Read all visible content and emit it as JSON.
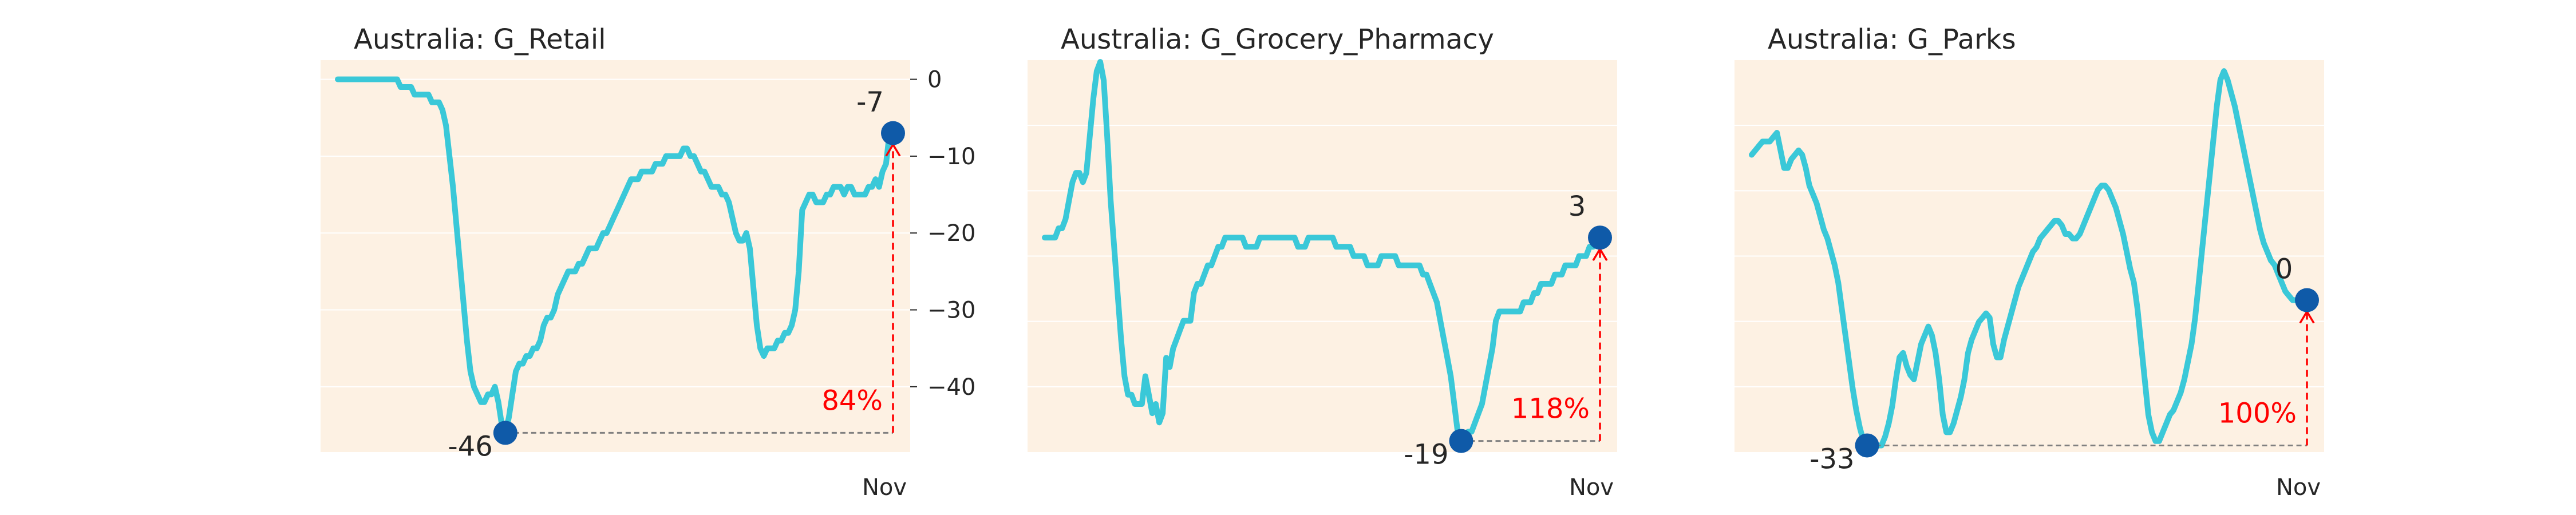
{
  "colors": {
    "background": "#fdf1e3",
    "line": "#3ac8d8",
    "marker": "#0f5aa8",
    "baseline": "#808080",
    "arrow": "#ff0000",
    "grid": "#ffffff"
  },
  "chart_data": [
    {
      "type": "line",
      "title": "Australia: G_Retail",
      "x_tick_label": "Nov",
      "ylim": [
        -48.5,
        2.5
      ],
      "y_ticks": [
        0,
        -10,
        -20,
        -30,
        -40
      ],
      "y_tick_labels": [
        "0",
        "−10",
        "−20",
        "−30",
        "−40"
      ],
      "grid": true,
      "values": [
        0,
        0,
        0,
        0,
        0,
        0,
        0,
        0,
        0,
        0,
        0,
        0,
        0,
        0,
        0,
        0,
        0,
        0,
        -1,
        -1,
        -1,
        -1,
        -2,
        -2,
        -2,
        -2,
        -2,
        -3,
        -3,
        -3,
        -4,
        -6,
        -10,
        -14,
        -19,
        -24,
        -29,
        -34,
        -38,
        -40,
        -41,
        -42,
        -42,
        -41,
        -41,
        -40,
        -42,
        -45,
        -46,
        -44,
        -41,
        -38,
        -37,
        -37,
        -36,
        -36,
        -35,
        -35,
        -34,
        -32,
        -31,
        -31,
        -30,
        -28,
        -27,
        -26,
        -25,
        -25,
        -25,
        -24,
        -24,
        -23,
        -22,
        -22,
        -22,
        -21,
        -20,
        -20,
        -19,
        -18,
        -17,
        -16,
        -15,
        -14,
        -13,
        -13,
        -13,
        -12,
        -12,
        -12,
        -12,
        -11,
        -11,
        -11,
        -10,
        -10,
        -10,
        -10,
        -10,
        -9,
        -9,
        -10,
        -10,
        -11,
        -12,
        -12,
        -13,
        -14,
        -14,
        -14,
        -15,
        -15,
        -16,
        -18,
        -20,
        -21,
        -21,
        -20,
        -22,
        -27,
        -32,
        -35,
        -36,
        -35,
        -35,
        -35,
        -34,
        -34,
        -33,
        -33,
        -32,
        -30,
        -25,
        -17,
        -16,
        -15,
        -15,
        -16,
        -16,
        -16,
        -15,
        -15,
        -14,
        -14,
        -14,
        -15,
        -14,
        -14,
        -15,
        -15,
        -15,
        -15,
        -14,
        -14,
        -13,
        -14,
        -12,
        -11,
        -7,
        -7
      ],
      "min_value": -46,
      "end_value": -7,
      "min_label": "-46",
      "end_label": "-7",
      "change_label": "84%"
    },
    {
      "type": "line",
      "title": "Australia: G_Grocery_Pharmacy",
      "x_tick_label": "Nov",
      "ylim": [
        -20.2,
        22.2
      ],
      "values": [
        3,
        3,
        3,
        3,
        4,
        4,
        5,
        7,
        9,
        10,
        10,
        9,
        10,
        14,
        18,
        21,
        22,
        20,
        14,
        7,
        2,
        -3,
        -8,
        -12,
        -14,
        -14,
        -15,
        -15,
        -15,
        -12,
        -14,
        -16,
        -15,
        -17,
        -16,
        -10,
        -11,
        -9,
        -8,
        -7,
        -6,
        -6,
        -6,
        -3,
        -2,
        -2,
        -1,
        0,
        0,
        1,
        2,
        2,
        3,
        3,
        3,
        3,
        3,
        3,
        2,
        2,
        2,
        2,
        3,
        3,
        3,
        3,
        3,
        3,
        3,
        3,
        3,
        3,
        3,
        2,
        2,
        2,
        3,
        3,
        3,
        3,
        3,
        3,
        3,
        3,
        2,
        2,
        2,
        2,
        2,
        1,
        1,
        1,
        1,
        0,
        0,
        0,
        0,
        1,
        1,
        1,
        1,
        1,
        0,
        0,
        0,
        0,
        0,
        0,
        0,
        -1,
        -1,
        -2,
        -3,
        -4,
        -6,
        -8,
        -10,
        -12,
        -15,
        -18,
        -19,
        -19,
        -18,
        -18,
        -17,
        -16,
        -15,
        -13,
        -11,
        -9,
        -6,
        -5,
        -5,
        -5,
        -5,
        -5,
        -5,
        -5,
        -4,
        -4,
        -4,
        -3,
        -3,
        -2,
        -2,
        -2,
        -2,
        -1,
        -1,
        -1,
        0,
        0,
        0,
        0,
        1,
        1,
        1,
        2,
        2,
        3,
        3
      ],
      "min_value": -19,
      "end_value": 3,
      "min_label": "-19",
      "end_label": "3",
      "change_label": "118%"
    },
    {
      "type": "line",
      "title": "Australia: G_Parks",
      "x_tick_label": "Nov",
      "ylim": [
        -34.5,
        54.5
      ],
      "values": [
        33,
        34,
        35,
        36,
        36,
        36,
        37,
        38,
        34,
        30,
        30,
        32,
        33,
        34,
        33,
        30,
        26,
        24,
        22,
        19,
        16,
        14,
        11,
        8,
        4,
        -2,
        -8,
        -14,
        -20,
        -25,
        -29,
        -32,
        -33,
        -33,
        -33,
        -33,
        -33,
        -31,
        -28,
        -24,
        -18,
        -13,
        -12,
        -15,
        -17,
        -18,
        -14,
        -10,
        -8,
        -6,
        -8,
        -12,
        -18,
        -26,
        -30,
        -30,
        -28,
        -25,
        -22,
        -18,
        -12,
        -9,
        -7,
        -5,
        -4,
        -3,
        -4,
        -10,
        -13,
        -13,
        -9,
        -6,
        -3,
        0,
        3,
        5,
        7,
        9,
        11,
        12,
        14,
        15,
        16,
        17,
        18,
        18,
        17,
        15,
        15,
        14,
        14,
        15,
        17,
        19,
        21,
        23,
        25,
        26,
        26,
        25,
        23,
        21,
        18,
        15,
        11,
        7,
        4,
        -2,
        -10,
        -18,
        -26,
        -30,
        -32,
        -32,
        -30,
        -28,
        -26,
        -25,
        -23,
        -21,
        -18,
        -14,
        -10,
        -4,
        4,
        12,
        20,
        28,
        36,
        44,
        50,
        52,
        50,
        47,
        44,
        40,
        36,
        32,
        28,
        24,
        20,
        16,
        13,
        11,
        9,
        8,
        6,
        4,
        2,
        1,
        0,
        0,
        0,
        0,
        0
      ],
      "min_value": -33,
      "end_value": 0,
      "min_label": "-33",
      "end_label": "0",
      "change_label": "100%"
    }
  ]
}
